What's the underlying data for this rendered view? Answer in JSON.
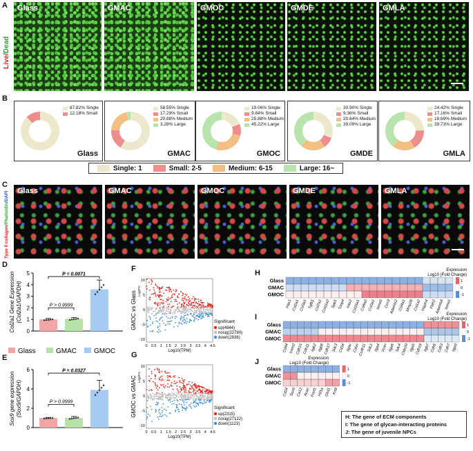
{
  "panel_letters": {
    "a": "A",
    "b": "B",
    "c": "C",
    "d": "D",
    "e": "E",
    "f": "F",
    "g": "G",
    "h": "H",
    "i": "I",
    "j": "J"
  },
  "groups": [
    "Glass",
    "GMAC",
    "GMOC",
    "GMDE",
    "GMLA"
  ],
  "panel_a": {
    "side_label_live": "Live/",
    "side_label_dead": "Dead"
  },
  "panel_b": {
    "donuts": [
      {
        "name": "Glass",
        "values": [
          87.82,
          12.18,
          0,
          0
        ],
        "legend": [
          "87.82% Single",
          "12.18% Small"
        ]
      },
      {
        "name": "GMAC",
        "values": [
          58.55,
          17.29,
          20.88,
          3.28
        ],
        "legend": [
          "58.55% Single",
          "17.29% Small",
          "20.88% Medium",
          "3.28% Large"
        ]
      },
      {
        "name": "GMOC",
        "values": [
          19.06,
          9.84,
          25.88,
          45.22
        ],
        "legend": [
          "19.06% Single",
          "9.84% Small",
          "25.88% Medium",
          "45.22% Large"
        ]
      },
      {
        "name": "GMDE",
        "values": [
          30.9,
          9.36,
          20.64,
          39.09
        ],
        "legend": [
          "30.90% Single",
          "9.36% Small",
          "20.64% Medium",
          "39.09% Large"
        ]
      },
      {
        "name": "GMLA",
        "values": [
          24.42,
          17.16,
          18.69,
          39.73
        ],
        "legend": [
          "24.42% Single",
          "17.16% Small",
          "18.69% Medium",
          "39.73% Large"
        ]
      }
    ],
    "colors": [
      "#ece8cb",
      "#ee8d8d",
      "#f1bf82",
      "#b8e3ac"
    ],
    "legend": [
      "Single:  1",
      "Small:  2-5",
      "Medium:  6-15",
      "Large:  16~"
    ]
  },
  "panel_c": {
    "side_label_a": "Type II collagen",
    "side_label_b": "/Phalloidin",
    "side_label_c": "/DAPI"
  },
  "panel_d": {
    "ylabel_line1": "Col2a1 Gene Expression",
    "ylabel_line2": "(Col2a1/GAPDH)",
    "p_top": "P = 0.0071",
    "p_bottom": "P > 0.9999",
    "yticks": [
      "0",
      "1",
      "2",
      "3",
      "4",
      "5"
    ],
    "chart_data": {
      "type": "bar",
      "categories": [
        "Glass",
        "GMAC",
        "GMOC"
      ],
      "values": [
        1.0,
        1.05,
        3.6
      ],
      "errors": [
        0.08,
        0.12,
        0.8
      ],
      "ylim": [
        0,
        5
      ]
    }
  },
  "panel_e": {
    "ylabel_line1": "Sox9 gene expression",
    "ylabel_line2": "(Sox9/GAPDH)",
    "p_top": "P = 0.0327",
    "p_bottom": "P > 0.9999",
    "yticks": [
      "0",
      "2",
      "4",
      "6"
    ],
    "chart_data": {
      "type": "bar",
      "categories": [
        "Glass",
        "GMAC",
        "GMOC"
      ],
      "values": [
        1.0,
        1.0,
        3.9
      ],
      "errors": [
        0.05,
        0.15,
        1.0
      ],
      "ylim": [
        0,
        6
      ]
    }
  },
  "bar_legend": [
    "Glass",
    "GMAC",
    "GMOC"
  ],
  "bar_colors": [
    "#f2a5a5",
    "#b9e2aa",
    "#a6cbf3"
  ],
  "panel_f": {
    "ylabel": "GMOC vs Glass",
    "ylabel_small": "Log2FC",
    "xlabel": "Log10(TPM)",
    "xticks": [
      "0",
      "0.5",
      "1",
      "1.5",
      "2",
      "2.5",
      "3",
      "3.5",
      "4",
      "4.5"
    ],
    "yticks": [
      "10",
      "5",
      "0",
      "-5",
      "-10"
    ],
    "legend_title": "Significant",
    "legend": [
      "up(4844)",
      "nosig(22780)",
      "down(2936)"
    ]
  },
  "panel_g": {
    "ylabel": "GMOC vs GMAC",
    "ylabel_small": "Log2FC",
    "xlabel": "Log10(TPM)",
    "xticks": [
      "0",
      "0.5",
      "1",
      "1.5",
      "2",
      "2.5",
      "3",
      "3.5",
      "4",
      "4.5"
    ],
    "yticks": [
      "10",
      "5",
      "0",
      "-5",
      "-10"
    ],
    "legend_title": "Significant",
    "legend": [
      "up(2315)",
      "nosig(27122)",
      "down(1123)"
    ]
  },
  "panel_h": {
    "title_a": "Expression",
    "title_b": "Log10 (Fold Change)",
    "rows": [
      "Glass",
      "GMAC",
      "GMOC"
    ],
    "genes": [
      "Has1",
      "Col2a1",
      "Col3a1",
      "Tgfb1",
      "Col7a1",
      "Col11a2",
      "Spp1",
      "Timp4",
      "Has2",
      "Col16a1",
      "Col6a2",
      "Col3a1",
      "lama5",
      "Ccn3",
      "Adamts2",
      "Col4a1",
      "Mmp28",
      "Col1a2",
      "Hapln4",
      "Fbln2",
      "Adamts8",
      "lama1"
    ],
    "scale": [
      "1",
      "0",
      "-1"
    ]
  },
  "panel_i": {
    "title_a": "Expression",
    "title_b": "Log10 (Fold Change)",
    "rows": [
      "Glass",
      "GMAC",
      "GMOC"
    ],
    "genes": [
      "Cd44",
      "Icam2",
      "Cdh15",
      "Cdh11",
      "Itgb2",
      "Itgb8",
      "Cdh17",
      "Sdc3",
      "Cd34",
      "Itgav",
      "Cdon",
      "Ccdh11",
      "Sdc1",
      "Itga4",
      "Vcan",
      "Itga6",
      "Sdc4",
      "Cldn20",
      "Itga5",
      "Cdh18",
      "Itgb7",
      "Cdh5",
      "Cdh3",
      "Cdh7",
      "Itga9"
    ],
    "scale": [
      "1",
      "0",
      "-1"
    ]
  },
  "panel_j": {
    "title_a": "Expression",
    "title_b": "Log10 (Fold Change)",
    "rows": [
      "Glass",
      "GMAC",
      "GMOC"
    ],
    "genes": [
      "Cd24",
      "Sox9",
      "Ca12",
      "Acan",
      "Foxf1",
      "Hif1a",
      "Glut1",
      "Krt8"
    ],
    "scale": [
      "1",
      "0",
      "-1"
    ]
  },
  "key_box": [
    "H: The gene of ECM components",
    "I: The gene of glycan-interacting proteins",
    "J: The gene of juvenile NPCs"
  ],
  "volcano_colors": {
    "up": "#e8271e",
    "nosig": "#bfbfbf",
    "down": "#3d8fdc"
  },
  "heat_colors": {
    "high": "#e8626b",
    "mid": "#ffffff",
    "low": "#5b8fd6"
  }
}
